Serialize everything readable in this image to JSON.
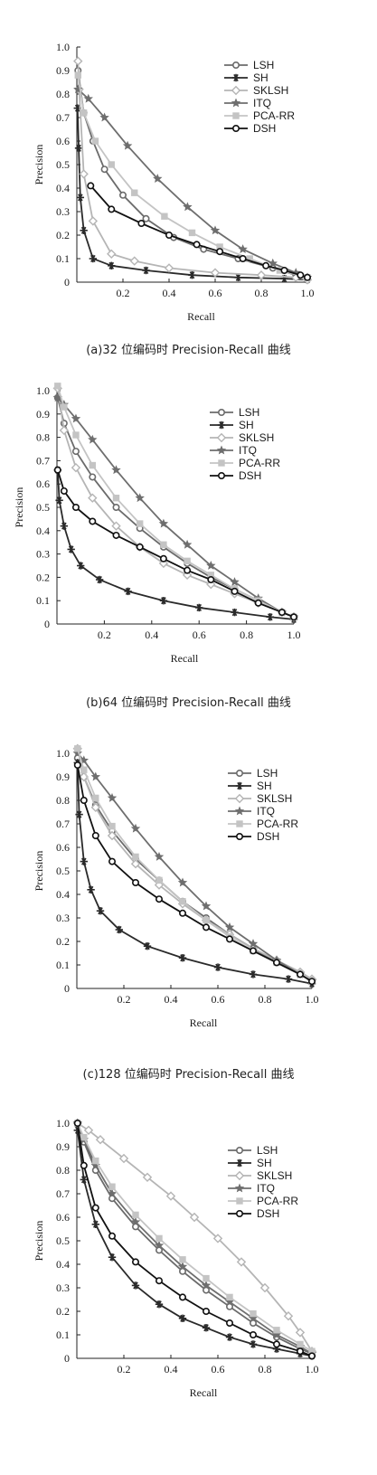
{
  "styles": {
    "LSH": {
      "color": "#6b6b6b",
      "marker": "circle"
    },
    "SH": {
      "color": "#2a2a2a",
      "marker": "asterisk"
    },
    "SKLSH": {
      "color": "#b5b5b5",
      "marker": "diamond"
    },
    "ITQ": {
      "color": "#6e6e6e",
      "marker": "star"
    },
    "PCA-RR": {
      "color": "#c4c4c4",
      "marker": "square"
    },
    "DSH": {
      "color": "#111111",
      "marker": "circle"
    }
  },
  "chart_data": [
    {
      "type": "line",
      "caption": "(a)32 位编码时 Precision-Recall 曲线",
      "xlabel": "Recall",
      "ylabel": "Precision",
      "xlim": [
        0,
        1.0
      ],
      "ylim": [
        0,
        1.0
      ],
      "xticks": [
        "0.2",
        "0.4",
        "0.6",
        "0.8",
        "1.0"
      ],
      "yticks": [
        "0",
        "0.1",
        "0.2",
        "0.3",
        "0.4",
        "0.5",
        "0.6",
        "0.7",
        "0.8",
        "0.9",
        "1.0"
      ],
      "legend_position": "top-right",
      "series": [
        {
          "name": "LSH",
          "x": [
            0.005,
            0.03,
            0.07,
            0.12,
            0.2,
            0.3,
            0.42,
            0.55,
            0.7,
            0.85,
            0.95,
            1.0
          ],
          "y": [
            0.9,
            0.72,
            0.6,
            0.48,
            0.37,
            0.27,
            0.19,
            0.14,
            0.1,
            0.06,
            0.03,
            0.02
          ]
        },
        {
          "name": "SH",
          "x": [
            0.003,
            0.008,
            0.015,
            0.03,
            0.07,
            0.15,
            0.3,
            0.5,
            0.7,
            0.9,
            1.0
          ],
          "y": [
            0.74,
            0.57,
            0.36,
            0.22,
            0.1,
            0.07,
            0.05,
            0.03,
            0.02,
            0.015,
            0.01
          ]
        },
        {
          "name": "SKLSH",
          "x": [
            0.005,
            0.01,
            0.03,
            0.07,
            0.15,
            0.25,
            0.4,
            0.6,
            0.8,
            0.95,
            1.0
          ],
          "y": [
            0.94,
            0.82,
            0.46,
            0.26,
            0.12,
            0.09,
            0.06,
            0.04,
            0.03,
            0.02,
            0.01
          ]
        },
        {
          "name": "ITQ",
          "x": [
            0.005,
            0.05,
            0.12,
            0.22,
            0.35,
            0.48,
            0.6,
            0.72,
            0.85,
            0.95,
            1.0
          ],
          "y": [
            0.82,
            0.78,
            0.7,
            0.58,
            0.44,
            0.32,
            0.22,
            0.14,
            0.08,
            0.04,
            0.02
          ]
        },
        {
          "name": "PCA-RR",
          "x": [
            0.005,
            0.03,
            0.08,
            0.15,
            0.25,
            0.38,
            0.5,
            0.62,
            0.75,
            0.88,
            1.0
          ],
          "y": [
            0.88,
            0.72,
            0.6,
            0.5,
            0.38,
            0.28,
            0.21,
            0.15,
            0.1,
            0.05,
            0.02
          ]
        },
        {
          "name": "DSH",
          "x": [
            0.06,
            0.15,
            0.28,
            0.4,
            0.52,
            0.62,
            0.72,
            0.82,
            0.9,
            0.97,
            1.0
          ],
          "y": [
            0.41,
            0.31,
            0.25,
            0.2,
            0.16,
            0.13,
            0.1,
            0.07,
            0.05,
            0.03,
            0.02
          ]
        }
      ]
    },
    {
      "type": "line",
      "caption": "(b)64 位编码时 Precision-Recall 曲线",
      "xlabel": "Recall",
      "ylabel": "Precision",
      "xlim": [
        0,
        1.0
      ],
      "ylim": [
        0,
        1.0
      ],
      "xticks": [
        "0.2",
        "0.4",
        "0.6",
        "0.8",
        "1.0"
      ],
      "yticks": [
        "0",
        "0.1",
        "0.2",
        "0.3",
        "0.4",
        "0.5",
        "0.6",
        "0.7",
        "0.8",
        "0.9",
        "1.0"
      ],
      "legend_position": "top-right",
      "series": [
        {
          "name": "LSH",
          "x": [
            0.003,
            0.03,
            0.08,
            0.15,
            0.25,
            0.35,
            0.45,
            0.55,
            0.65,
            0.75,
            0.85,
            0.95,
            1.0
          ],
          "y": [
            0.97,
            0.86,
            0.74,
            0.63,
            0.5,
            0.41,
            0.33,
            0.26,
            0.2,
            0.15,
            0.1,
            0.05,
            0.03
          ]
        },
        {
          "name": "SH",
          "x": [
            0.003,
            0.01,
            0.03,
            0.06,
            0.1,
            0.18,
            0.3,
            0.45,
            0.6,
            0.75,
            0.9,
            1.0
          ],
          "y": [
            0.66,
            0.53,
            0.42,
            0.32,
            0.25,
            0.19,
            0.14,
            0.1,
            0.07,
            0.05,
            0.03,
            0.02
          ]
        },
        {
          "name": "SKLSH",
          "x": [
            0.003,
            0.03,
            0.08,
            0.15,
            0.25,
            0.35,
            0.45,
            0.55,
            0.65,
            0.75,
            0.85,
            0.95,
            1.0
          ],
          "y": [
            1.01,
            0.83,
            0.67,
            0.54,
            0.42,
            0.33,
            0.26,
            0.21,
            0.17,
            0.13,
            0.09,
            0.05,
            0.03
          ]
        },
        {
          "name": "ITQ",
          "x": [
            0.003,
            0.03,
            0.08,
            0.15,
            0.25,
            0.35,
            0.45,
            0.55,
            0.65,
            0.75,
            0.85,
            0.95,
            1.0
          ],
          "y": [
            0.97,
            0.94,
            0.88,
            0.79,
            0.66,
            0.54,
            0.43,
            0.34,
            0.25,
            0.18,
            0.11,
            0.05,
            0.03
          ]
        },
        {
          "name": "PCA-RR",
          "x": [
            0.003,
            0.03,
            0.08,
            0.15,
            0.25,
            0.35,
            0.45,
            0.55,
            0.65,
            0.75,
            0.85,
            0.95,
            1.0
          ],
          "y": [
            1.02,
            0.93,
            0.81,
            0.68,
            0.54,
            0.43,
            0.34,
            0.27,
            0.21,
            0.15,
            0.1,
            0.05,
            0.03
          ]
        },
        {
          "name": "DSH",
          "x": [
            0.003,
            0.03,
            0.08,
            0.15,
            0.25,
            0.35,
            0.45,
            0.55,
            0.65,
            0.75,
            0.85,
            0.95,
            1.0
          ],
          "y": [
            0.66,
            0.57,
            0.5,
            0.44,
            0.38,
            0.33,
            0.28,
            0.23,
            0.19,
            0.14,
            0.09,
            0.05,
            0.03
          ]
        }
      ]
    },
    {
      "type": "line",
      "caption": "(c)128 位编码时 Precision-Recall 曲线",
      "xlabel": "Recall",
      "ylabel": "Precision",
      "xlim": [
        0,
        1.0
      ],
      "ylim": [
        0,
        1.0
      ],
      "xticks": [
        "0.2",
        "0.4",
        "0.6",
        "0.8",
        "1.0"
      ],
      "yticks": [
        "0",
        "0.1",
        "0.2",
        "0.3",
        "0.4",
        "0.5",
        "0.6",
        "0.7",
        "0.8",
        "0.9",
        "1.0"
      ],
      "legend_position": "top-right",
      "series": [
        {
          "name": "LSH",
          "x": [
            0.003,
            0.03,
            0.08,
            0.15,
            0.25,
            0.35,
            0.45,
            0.55,
            0.65,
            0.75,
            0.85,
            0.95,
            1.0
          ],
          "y": [
            0.98,
            0.9,
            0.78,
            0.67,
            0.55,
            0.46,
            0.37,
            0.3,
            0.23,
            0.17,
            0.11,
            0.06,
            0.03
          ]
        },
        {
          "name": "SH",
          "x": [
            0.003,
            0.01,
            0.03,
            0.06,
            0.1,
            0.18,
            0.3,
            0.45,
            0.6,
            0.75,
            0.9,
            1.0
          ],
          "y": [
            0.96,
            0.74,
            0.54,
            0.42,
            0.33,
            0.25,
            0.18,
            0.13,
            0.09,
            0.06,
            0.04,
            0.02
          ]
        },
        {
          "name": "SKLSH",
          "x": [
            0.003,
            0.03,
            0.08,
            0.15,
            0.25,
            0.35,
            0.45,
            0.55,
            0.65,
            0.75,
            0.85,
            0.95,
            1.0
          ],
          "y": [
            1.02,
            0.9,
            0.77,
            0.65,
            0.53,
            0.44,
            0.36,
            0.29,
            0.23,
            0.17,
            0.12,
            0.07,
            0.04
          ]
        },
        {
          "name": "ITQ",
          "x": [
            0.003,
            0.03,
            0.08,
            0.15,
            0.25,
            0.35,
            0.45,
            0.55,
            0.65,
            0.75,
            0.85,
            0.95,
            1.0
          ],
          "y": [
            1.0,
            0.97,
            0.9,
            0.81,
            0.68,
            0.56,
            0.45,
            0.35,
            0.26,
            0.19,
            0.12,
            0.06,
            0.03
          ]
        },
        {
          "name": "PCA-RR",
          "x": [
            0.003,
            0.03,
            0.08,
            0.15,
            0.25,
            0.35,
            0.45,
            0.55,
            0.65,
            0.75,
            0.85,
            0.95,
            1.0
          ],
          "y": [
            1.02,
            0.93,
            0.81,
            0.69,
            0.56,
            0.46,
            0.37,
            0.29,
            0.22,
            0.16,
            0.11,
            0.06,
            0.03
          ]
        },
        {
          "name": "DSH",
          "x": [
            0.003,
            0.03,
            0.08,
            0.15,
            0.25,
            0.35,
            0.45,
            0.55,
            0.65,
            0.75,
            0.85,
            0.95,
            1.0
          ],
          "y": [
            0.95,
            0.8,
            0.65,
            0.54,
            0.45,
            0.38,
            0.32,
            0.26,
            0.21,
            0.16,
            0.11,
            0.06,
            0.03
          ]
        }
      ]
    },
    {
      "type": "line",
      "caption": "",
      "xlabel": "Recall",
      "ylabel": "Precision",
      "xlim": [
        0,
        1.0
      ],
      "ylim": [
        0,
        1.0
      ],
      "xticks": [
        "0.2",
        "0.4",
        "0.6",
        "0.8",
        "1.0"
      ],
      "yticks": [
        "0",
        "0.1",
        "0.2",
        "0.3",
        "0.4",
        "0.5",
        "0.6",
        "0.7",
        "0.8",
        "0.9",
        "1.0"
      ],
      "legend_position": "top-right",
      "series": [
        {
          "name": "LSH",
          "x": [
            0.003,
            0.03,
            0.08,
            0.15,
            0.25,
            0.35,
            0.45,
            0.55,
            0.65,
            0.75,
            0.85,
            0.95,
            1.0
          ],
          "y": [
            1.0,
            0.92,
            0.8,
            0.68,
            0.56,
            0.46,
            0.37,
            0.29,
            0.22,
            0.15,
            0.09,
            0.04,
            0.02
          ]
        },
        {
          "name": "SH",
          "x": [
            0.003,
            0.03,
            0.08,
            0.15,
            0.25,
            0.35,
            0.45,
            0.55,
            0.65,
            0.75,
            0.85,
            0.95,
            1.0
          ],
          "y": [
            0.97,
            0.76,
            0.57,
            0.43,
            0.31,
            0.23,
            0.17,
            0.13,
            0.09,
            0.06,
            0.04,
            0.02,
            0.01
          ]
        },
        {
          "name": "SKLSH",
          "x": [
            0.003,
            0.05,
            0.1,
            0.2,
            0.3,
            0.4,
            0.5,
            0.6,
            0.7,
            0.8,
            0.9,
            0.95,
            1.0
          ],
          "y": [
            1.0,
            0.97,
            0.93,
            0.85,
            0.77,
            0.69,
            0.6,
            0.51,
            0.41,
            0.3,
            0.18,
            0.11,
            0.03
          ]
        },
        {
          "name": "ITQ",
          "x": [
            0.003,
            0.03,
            0.08,
            0.15,
            0.25,
            0.35,
            0.45,
            0.55,
            0.65,
            0.75,
            0.85,
            0.95,
            1.0
          ],
          "y": [
            1.0,
            0.93,
            0.82,
            0.7,
            0.58,
            0.48,
            0.39,
            0.31,
            0.24,
            0.17,
            0.1,
            0.05,
            0.02
          ]
        },
        {
          "name": "PCA-RR",
          "x": [
            0.003,
            0.03,
            0.08,
            0.15,
            0.25,
            0.35,
            0.45,
            0.55,
            0.65,
            0.75,
            0.85,
            0.95,
            1.0
          ],
          "y": [
            1.0,
            0.94,
            0.84,
            0.73,
            0.61,
            0.51,
            0.42,
            0.34,
            0.26,
            0.19,
            0.12,
            0.06,
            0.03
          ]
        },
        {
          "name": "DSH",
          "x": [
            0.003,
            0.03,
            0.08,
            0.15,
            0.25,
            0.35,
            0.45,
            0.55,
            0.65,
            0.75,
            0.85,
            0.95,
            1.0
          ],
          "y": [
            1.0,
            0.82,
            0.64,
            0.52,
            0.41,
            0.33,
            0.26,
            0.2,
            0.15,
            0.1,
            0.06,
            0.03,
            0.01
          ]
        }
      ]
    }
  ]
}
